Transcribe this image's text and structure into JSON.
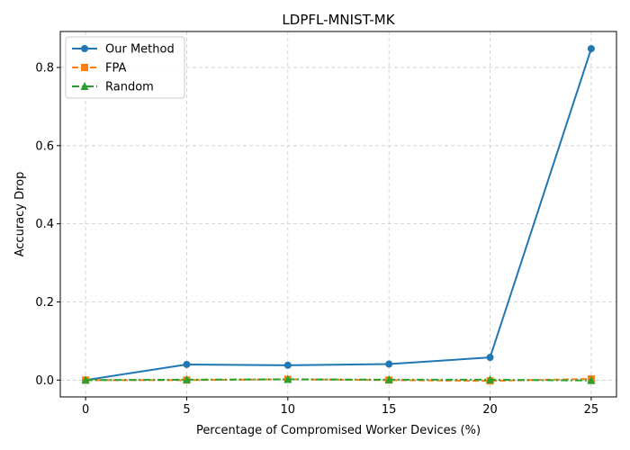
{
  "chart_data": {
    "type": "line",
    "title": "LDPFL-MNIST-MK",
    "xlabel": "Percentage of Compromised Worker Devices (%)",
    "ylabel": "Accuracy Drop",
    "x": [
      0,
      5,
      10,
      15,
      20,
      25
    ],
    "xlim": [
      -1.25,
      26.25
    ],
    "ylim": [
      -0.043,
      0.892
    ],
    "xticks": [
      0,
      5,
      10,
      15,
      20,
      25
    ],
    "yticks": [
      0.0,
      0.2,
      0.4,
      0.6,
      0.8
    ],
    "xtick_labels": [
      "0",
      "5",
      "10",
      "15",
      "20",
      "25"
    ],
    "ytick_labels": [
      "0.0",
      "0.2",
      "0.4",
      "0.6",
      "0.8"
    ],
    "grid": true,
    "legend_position": "top-left",
    "series": [
      {
        "name": "Our Method",
        "values": [
          0.0,
          0.04,
          0.038,
          0.041,
          0.058,
          0.848
        ],
        "color": "#1f77b4",
        "marker": "circle",
        "linestyle": "solid"
      },
      {
        "name": "FPA",
        "values": [
          0.0,
          0.0,
          0.002,
          0.0,
          -0.002,
          0.003
        ],
        "color": "#ff7f0e",
        "marker": "square",
        "linestyle": "dashed"
      },
      {
        "name": "Random",
        "values": [
          0.0,
          0.001,
          0.002,
          0.001,
          0.001,
          -0.001
        ],
        "color": "#2ca02c",
        "marker": "triangle",
        "linestyle": "dashdot"
      }
    ]
  }
}
